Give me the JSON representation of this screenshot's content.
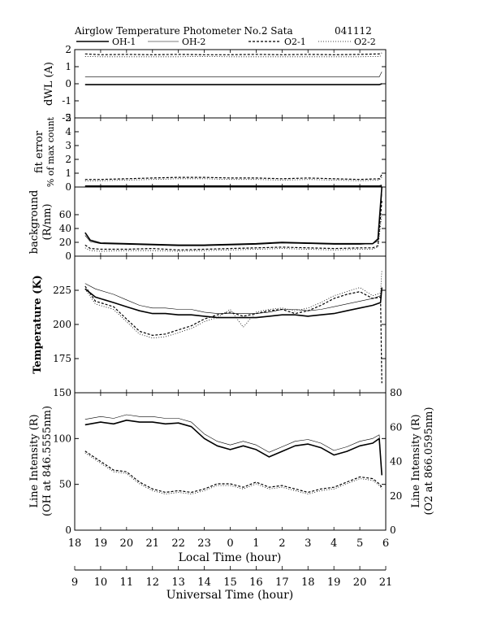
{
  "header": {
    "title": "Airglow Temperature Photometer No.2  Sata",
    "date": "041112"
  },
  "legend": [
    {
      "label": "OH-1",
      "style": "solid-thick"
    },
    {
      "label": "OH-2",
      "style": "solid-thin"
    },
    {
      "label": "O2-1",
      "style": "dashed"
    },
    {
      "label": "O2-2",
      "style": "dotted"
    }
  ],
  "x_axis": {
    "local_label": "Local Time (hour)",
    "local_ticks": [
      "18",
      "19",
      "20",
      "21",
      "22",
      "23",
      "0",
      "1",
      "2",
      "3",
      "4",
      "5",
      "6"
    ],
    "ut_label": "Universal Time (hour)",
    "ut_ticks": [
      "9",
      "10",
      "11",
      "12",
      "13",
      "14",
      "15",
      "16",
      "17",
      "18",
      "19",
      "20",
      "21"
    ]
  },
  "chart_data": [
    {
      "type": "line",
      "panel": "dwl",
      "ylabel": "dWL (A)",
      "ylim": [
        -2,
        2
      ],
      "yticks": [
        "2",
        "1",
        "0",
        "-1",
        "-2"
      ],
      "x": [
        18.4,
        19,
        20,
        21,
        22,
        23,
        24,
        25,
        26,
        27,
        28,
        29,
        29.75,
        29.85
      ],
      "series": [
        {
          "name": "OH-1",
          "values": [
            -0.05,
            -0.05,
            -0.05,
            -0.05,
            -0.05,
            -0.05,
            -0.05,
            -0.05,
            -0.05,
            -0.05,
            -0.05,
            -0.05,
            -0.05,
            0.0
          ]
        },
        {
          "name": "OH-2",
          "values": [
            0.4,
            0.4,
            0.4,
            0.4,
            0.4,
            0.4,
            0.4,
            0.4,
            0.4,
            0.4,
            0.4,
            0.4,
            0.4,
            0.7
          ]
        },
        {
          "name": "O2-1",
          "values": [
            1.75,
            1.7,
            1.72,
            1.7,
            1.72,
            1.7,
            1.7,
            1.72,
            1.7,
            1.72,
            1.7,
            1.72,
            1.75,
            1.8
          ]
        },
        {
          "name": "O2-2",
          "values": [
            1.6,
            1.58,
            1.58,
            1.58,
            1.58,
            1.6,
            1.58,
            1.58,
            1.58,
            1.58,
            1.58,
            1.58,
            1.6,
            1.65
          ]
        }
      ]
    },
    {
      "type": "line",
      "panel": "fit-error",
      "ylabel": "fit error",
      "ylabel2": "% of max count",
      "ylim": [
        0,
        5
      ],
      "yticks": [
        "5",
        "4",
        "3",
        "2",
        "1",
        "0"
      ],
      "x": [
        18.4,
        19,
        20,
        21,
        22,
        23,
        24,
        25,
        26,
        27,
        28,
        29,
        29.75,
        29.85
      ],
      "series": [
        {
          "name": "OH-1",
          "values": [
            0.05,
            0.05,
            0.05,
            0.05,
            0.05,
            0.05,
            0.05,
            0.05,
            0.05,
            0.05,
            0.05,
            0.05,
            0.05,
            0.08
          ]
        },
        {
          "name": "OH-2",
          "values": [
            0.1,
            0.1,
            0.1,
            0.1,
            0.1,
            0.1,
            0.1,
            0.1,
            0.1,
            0.1,
            0.1,
            0.1,
            0.1,
            0.15
          ]
        },
        {
          "name": "O2-1",
          "values": [
            0.55,
            0.55,
            0.6,
            0.65,
            0.7,
            0.7,
            0.65,
            0.65,
            0.6,
            0.65,
            0.6,
            0.55,
            0.6,
            0.9
          ]
        },
        {
          "name": "O2-2",
          "values": [
            0.45,
            0.45,
            0.5,
            0.55,
            0.6,
            0.6,
            0.55,
            0.55,
            0.5,
            0.55,
            0.5,
            0.45,
            0.5,
            0.7
          ]
        }
      ]
    },
    {
      "type": "line",
      "panel": "background",
      "ylabel": "background",
      "ylabel2": "(R/nm)",
      "ylim": [
        0,
        100
      ],
      "yticks": [
        "60",
        "40",
        "20",
        "0"
      ],
      "x": [
        18.4,
        18.6,
        19,
        20,
        21,
        22,
        23,
        24,
        25,
        26,
        27,
        28,
        29,
        29.5,
        29.7,
        29.85
      ],
      "series": [
        {
          "name": "OH-1",
          "values": [
            34,
            23,
            19,
            18,
            17,
            16,
            16,
            17,
            18,
            20,
            19,
            18,
            18,
            18,
            25,
            100
          ]
        },
        {
          "name": "OH-2",
          "values": [
            30,
            21,
            18,
            17,
            16,
            15,
            15,
            16,
            17,
            19,
            18,
            17,
            17,
            18,
            22,
            90
          ]
        },
        {
          "name": "O2-1",
          "values": [
            16,
            11,
            10,
            10,
            11,
            9,
            10,
            11,
            12,
            13,
            12,
            11,
            12,
            12,
            15,
            80
          ]
        },
        {
          "name": "O2-2",
          "values": [
            12,
            8,
            7,
            8,
            8,
            7,
            8,
            9,
            10,
            11,
            10,
            9,
            10,
            10,
            13,
            60
          ]
        }
      ]
    },
    {
      "type": "line",
      "panel": "temperature",
      "ylabel": "Temperature (K)",
      "ylim": [
        150,
        250
      ],
      "yticks": [
        "225",
        "200",
        "175"
      ],
      "x": [
        18.4,
        18.8,
        19.5,
        20,
        20.5,
        21,
        21.5,
        22,
        22.5,
        23,
        23.5,
        24,
        24.5,
        25,
        25.5,
        26,
        26.5,
        27,
        27.5,
        28,
        28.5,
        29,
        29.5,
        29.8,
        29.85
      ],
      "series": [
        {
          "name": "OH-1",
          "values": [
            226,
            220,
            216,
            213,
            210,
            208,
            208,
            207,
            207,
            206,
            205,
            205,
            205,
            205,
            206,
            207,
            207,
            206,
            207,
            208,
            210,
            212,
            214,
            216,
            227
          ]
        },
        {
          "name": "OH-2",
          "values": [
            230,
            226,
            222,
            218,
            214,
            212,
            212,
            211,
            211,
            209,
            208,
            208,
            208,
            208,
            209,
            211,
            211,
            210,
            211,
            213,
            215,
            217,
            219,
            221,
            227
          ]
        },
        {
          "name": "O2-1",
          "values": [
            228,
            217,
            213,
            204,
            195,
            192,
            193,
            196,
            199,
            204,
            207,
            209,
            206,
            208,
            210,
            211,
            208,
            210,
            214,
            219,
            222,
            224,
            219,
            220,
            157
          ]
        },
        {
          "name": "O2-2",
          "values": [
            226,
            215,
            211,
            202,
            193,
            190,
            191,
            194,
            197,
            202,
            205,
            211,
            198,
            209,
            211,
            212,
            210,
            212,
            216,
            221,
            224,
            227,
            221,
            223,
            240
          ]
        }
      ]
    },
    {
      "type": "line",
      "panel": "intensity",
      "ylabel": "Line Intensity (R)",
      "ylabel2": "(OH at 846.5555nm)",
      "ylabel_right": "Line Intensity (R)",
      "ylabel_right2": "(O2 at 866.0595nm)",
      "ylim": [
        0,
        150
      ],
      "ylim_right": [
        0,
        80
      ],
      "yticks": [
        "150",
        "100",
        "50",
        "0"
      ],
      "yticks_right": [
        "80",
        "60",
        "40",
        "20",
        "0"
      ],
      "x": [
        18.4,
        19,
        19.5,
        20,
        20.5,
        21,
        21.5,
        22,
        22.5,
        23,
        23.5,
        24,
        24.5,
        25,
        25.5,
        26,
        26.5,
        27,
        27.5,
        28,
        28.5,
        29,
        29.5,
        29.75,
        29.85
      ],
      "series": [
        {
          "name": "OH-1",
          "axis": "left",
          "values": [
            115,
            118,
            116,
            120,
            118,
            118,
            116,
            117,
            113,
            100,
            92,
            88,
            92,
            88,
            80,
            86,
            92,
            94,
            90,
            82,
            86,
            92,
            95,
            100,
            60
          ]
        },
        {
          "name": "OH-2",
          "axis": "left",
          "values": [
            121,
            124,
            122,
            126,
            124,
            124,
            122,
            122,
            118,
            105,
            97,
            93,
            97,
            93,
            85,
            91,
            97,
            99,
            95,
            87,
            91,
            97,
            100,
            104,
            62
          ]
        },
        {
          "name": "O2-1",
          "axis": "right",
          "values": [
            46,
            40,
            35,
            34,
            28,
            24,
            22,
            23,
            22,
            24,
            27,
            27,
            25,
            28,
            25,
            26,
            24,
            22,
            24,
            25,
            28,
            31,
            30,
            27,
            25
          ]
        },
        {
          "name": "O2-2",
          "axis": "right",
          "values": [
            45,
            39,
            34,
            33,
            27,
            23,
            21,
            22,
            21,
            23,
            26,
            26,
            24,
            27,
            24,
            25,
            23,
            21,
            23,
            24,
            27,
            30,
            29,
            26,
            24
          ]
        }
      ]
    }
  ]
}
